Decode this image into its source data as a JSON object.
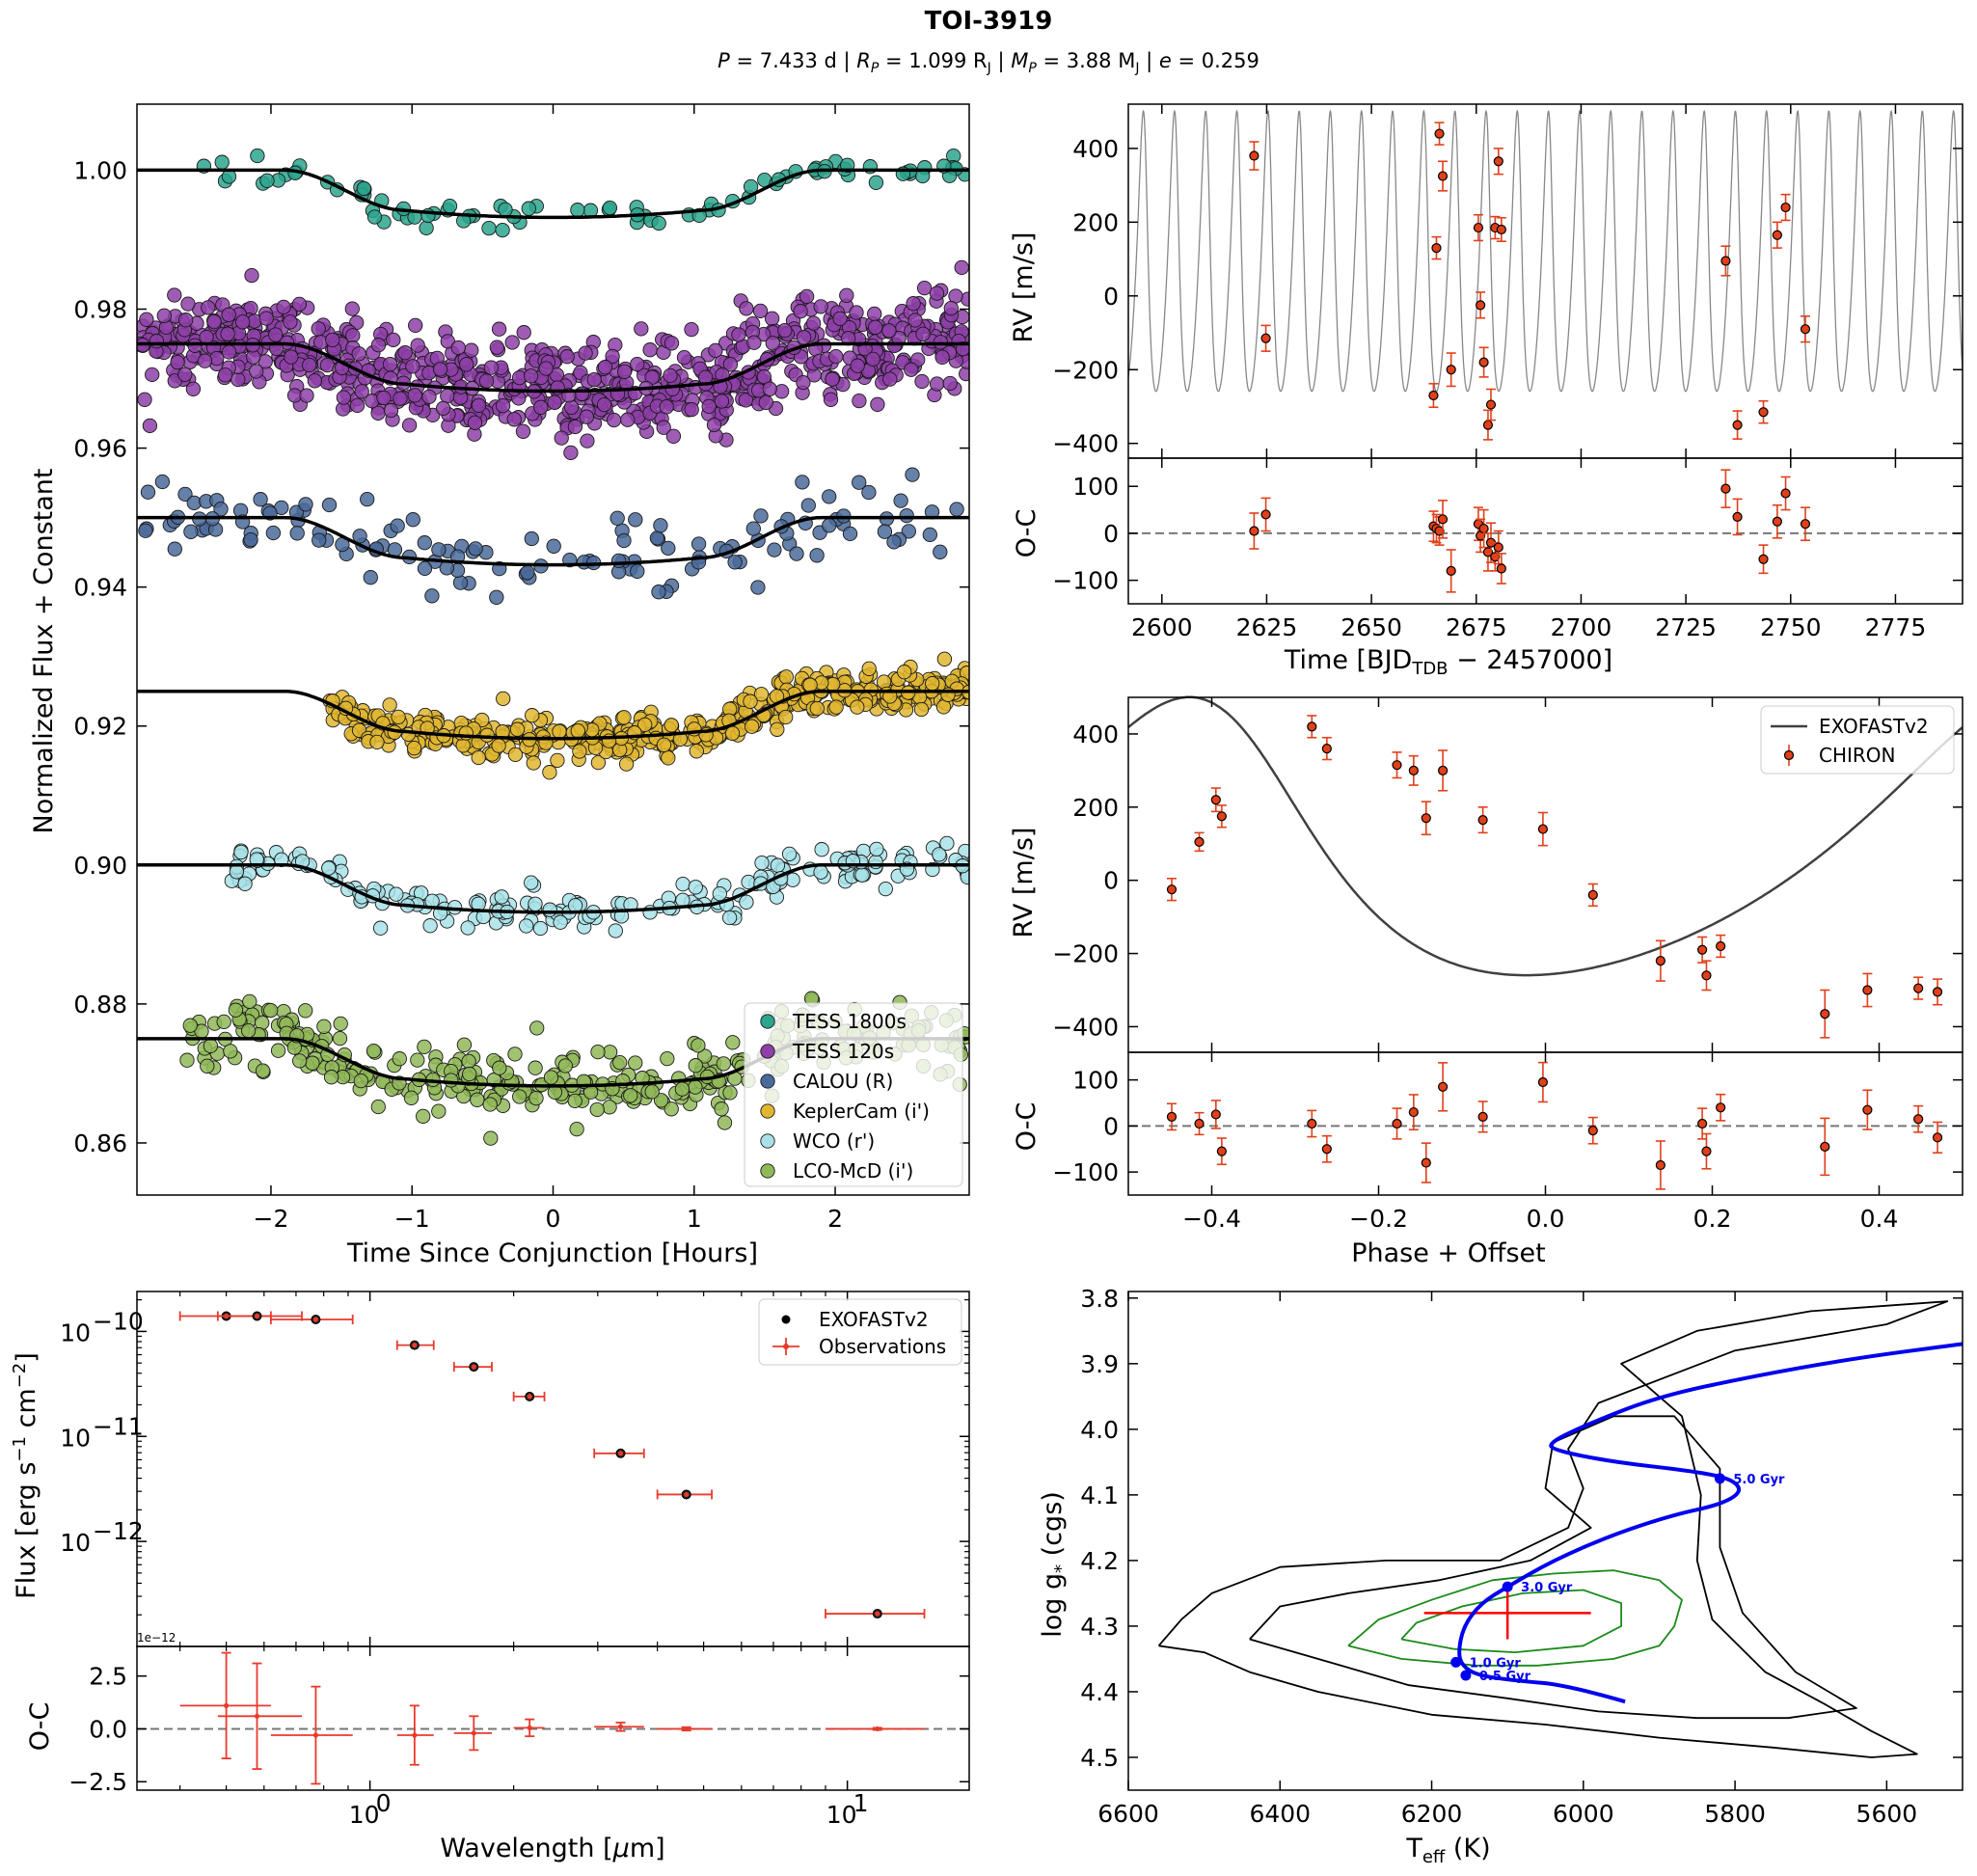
{
  "figure": {
    "title": "TOI-3919",
    "subtitle_parts": {
      "P_label": "P",
      "P_value": " = 7.433 d | ",
      "Rp_label": "R",
      "Rp_sub": "P",
      "Rp_value": " = 1.099 R",
      "Rp_unit_sub": "J",
      "Mp_label": "M",
      "Mp_sub": "P",
      "Mp_value": " = 3.88 M",
      "Mp_unit_sub": "J",
      "e_label": "e",
      "e_value": " = 0.259"
    }
  },
  "chart_data": [
    {
      "id": "transit",
      "type": "scatter",
      "xlabel": "Time Since Conjunction [Hours]",
      "ylabel": "Normalized Flux + Constant",
      "xlim": [
        -2.95,
        2.95
      ],
      "ylim": [
        0.8525,
        1.0095
      ],
      "xticks": [
        -2,
        -1,
        0,
        1,
        2
      ],
      "xtick_labels": [
        "−2",
        "−1",
        "0",
        "1",
        "2"
      ],
      "yticks": [
        0.86,
        0.88,
        0.9,
        0.92,
        0.94,
        0.96,
        0.98,
        1.0
      ],
      "ytick_labels": [
        "0.86",
        "0.88",
        "0.90",
        "0.92",
        "0.94",
        "0.96",
        "0.98",
        "1.00"
      ],
      "transit_model": {
        "depth": 0.0068,
        "t1": 1.9,
        "t2": 1.05
      },
      "legend_placement": "lower-right",
      "series": [
        {
          "name": "TESS 1800s",
          "color": "#2ca58d",
          "baseline": 1.0,
          "scatter": 0.0011,
          "count": 90,
          "tmin": -2.6,
          "tmax": 2.95
        },
        {
          "name": "TESS 120s",
          "color": "#8e3fa8",
          "baseline": 0.975,
          "scatter": 0.0036,
          "count": 850,
          "tmin": -2.95,
          "tmax": 2.95
        },
        {
          "name": "CALOU (R)",
          "color": "#4a6a9a",
          "baseline": 0.95,
          "scatter": 0.0026,
          "count": 140,
          "tmin": -2.95,
          "tmax": 2.95
        },
        {
          "name": "KeplerCam (i')",
          "color": "#e0b630",
          "baseline": 0.925,
          "scatter": 0.0015,
          "count": 480,
          "tmin": -1.6,
          "tmax": 2.95
        },
        {
          "name": "WCO (r')",
          "color": "#a8e2e8",
          "baseline": 0.9,
          "scatter": 0.0016,
          "count": 200,
          "tmin": -2.3,
          "tmax": 2.95
        },
        {
          "name": "LCO-McD (i')",
          "color": "#90b858",
          "baseline": 0.875,
          "scatter": 0.0024,
          "count": 360,
          "tmin": -2.6,
          "tmax": 2.95
        }
      ]
    },
    {
      "id": "rv_time",
      "type": "scatter",
      "xlabel_main": "Time [BJD",
      "xlabel_sub": "TDB",
      "xlabel_tail": " − 2457000]",
      "ylabel": "RV [m/s]",
      "resid_ylabel": "O-C",
      "xlim": [
        2592,
        2791
      ],
      "ylim": [
        -440,
        520
      ],
      "resid_ylim": [
        -150,
        160
      ],
      "xticks": [
        2600,
        2625,
        2650,
        2675,
        2700,
        2725,
        2750,
        2775
      ],
      "xtick_labels": [
        "2600",
        "2625",
        "2650",
        "2675",
        "2700",
        "2725",
        "2750",
        "2775"
      ],
      "yticks": [
        -400,
        -200,
        0,
        200,
        400
      ],
      "ytick_labels": [
        "−400",
        "−200",
        "0",
        "200",
        "400"
      ],
      "resid_yticks": [
        -100,
        0,
        100
      ],
      "resid_ytick_labels": [
        "−100",
        "0",
        "100"
      ],
      "model": {
        "period": 7.433,
        "phase_zero_time": 2596.0,
        "K": 380,
        "offset": 40,
        "e": 0.259
      },
      "points": [
        {
          "t": 2622.0,
          "rv": 380,
          "err": 38,
          "oc": 5
        },
        {
          "t": 2624.8,
          "rv": -115,
          "err": 35,
          "oc": 40
        },
        {
          "t": 2664.8,
          "rv": -270,
          "err": 32,
          "oc": 15
        },
        {
          "t": 2665.5,
          "rv": 130,
          "err": 30,
          "oc": 10
        },
        {
          "t": 2666.2,
          "rv": 440,
          "err": 30,
          "oc": 5
        },
        {
          "t": 2667.0,
          "rv": 325,
          "err": 40,
          "oc": 30
        },
        {
          "t": 2669.0,
          "rv": -200,
          "err": 45,
          "oc": -80
        },
        {
          "t": 2675.5,
          "rv": 185,
          "err": 35,
          "oc": 20
        },
        {
          "t": 2676.0,
          "rv": -25,
          "err": 35,
          "oc": -5
        },
        {
          "t": 2676.8,
          "rv": -180,
          "err": 40,
          "oc": 10
        },
        {
          "t": 2677.8,
          "rv": -350,
          "err": 40,
          "oc": -40
        },
        {
          "t": 2678.5,
          "rv": -295,
          "err": 42,
          "oc": -20
        },
        {
          "t": 2679.5,
          "rv": 185,
          "err": 30,
          "oc": -50
        },
        {
          "t": 2680.3,
          "rv": 365,
          "err": 35,
          "oc": -30
        },
        {
          "t": 2681.0,
          "rv": 180,
          "err": 32,
          "oc": -75
        },
        {
          "t": 2734.5,
          "rv": 95,
          "err": 40,
          "oc": 95
        },
        {
          "t": 2737.3,
          "rv": -350,
          "err": 38,
          "oc": 35
        },
        {
          "t": 2743.5,
          "rv": -315,
          "err": 30,
          "oc": -55
        },
        {
          "t": 2746.8,
          "rv": 165,
          "err": 35,
          "oc": 25
        },
        {
          "t": 2748.8,
          "rv": 240,
          "err": 35,
          "oc": 85
        },
        {
          "t": 2753.5,
          "rv": -90,
          "err": 35,
          "oc": 20
        }
      ]
    },
    {
      "id": "rv_phase",
      "type": "scatter",
      "xlabel": "Phase + Offset",
      "ylabel": "RV [m/s]",
      "resid_ylabel": "O-C",
      "xlim": [
        -0.5,
        0.5
      ],
      "ylim": [
        -470,
        500
      ],
      "resid_ylim": [
        -150,
        160
      ],
      "xticks": [
        -0.4,
        -0.2,
        0.0,
        0.2,
        0.4
      ],
      "xtick_labels": [
        "−0.4",
        "−0.2",
        "0.0",
        "0.2",
        "0.4"
      ],
      "yticks": [
        -400,
        -200,
        0,
        200,
        400
      ],
      "ytick_labels": [
        "−400",
        "−200",
        "0",
        "200",
        "400"
      ],
      "resid_yticks": [
        -100,
        0,
        100
      ],
      "resid_ytick_labels": [
        "−100",
        "0",
        "100"
      ],
      "model": {
        "K": 380,
        "offset": 40,
        "e": 0.259,
        "omega_deg": 35,
        "phase_peri": -0.37
      },
      "legend_placement": "upper-right",
      "legend": {
        "model": "EXOFASTv2",
        "data": "CHIRON"
      },
      "points": [
        {
          "ph": -0.448,
          "rv": -25,
          "err": 30,
          "oc": 20
        },
        {
          "ph": -0.415,
          "rv": 105,
          "err": 25,
          "oc": 5
        },
        {
          "ph": -0.395,
          "rv": 220,
          "err": 32,
          "oc": 25
        },
        {
          "ph": -0.388,
          "rv": 175,
          "err": 30,
          "oc": -55
        },
        {
          "ph": -0.28,
          "rv": 420,
          "err": 30,
          "oc": 5
        },
        {
          "ph": -0.262,
          "rv": 360,
          "err": 30,
          "oc": -50
        },
        {
          "ph": -0.178,
          "rv": 315,
          "err": 35,
          "oc": 5
        },
        {
          "ph": -0.158,
          "rv": 300,
          "err": 40,
          "oc": 30
        },
        {
          "ph": -0.143,
          "rv": 170,
          "err": 45,
          "oc": -80
        },
        {
          "ph": -0.123,
          "rv": 300,
          "err": 55,
          "oc": 85
        },
        {
          "ph": -0.075,
          "rv": 165,
          "err": 35,
          "oc": 20
        },
        {
          "ph": -0.003,
          "rv": 140,
          "err": 45,
          "oc": 95
        },
        {
          "ph": 0.057,
          "rv": -40,
          "err": 30,
          "oc": -10
        },
        {
          "ph": 0.138,
          "rv": -220,
          "err": 55,
          "oc": -85
        },
        {
          "ph": 0.188,
          "rv": -190,
          "err": 35,
          "oc": 5
        },
        {
          "ph": 0.193,
          "rv": -260,
          "err": 40,
          "oc": -55
        },
        {
          "ph": 0.21,
          "rv": -180,
          "err": 30,
          "oc": 40
        },
        {
          "ph": 0.335,
          "rv": -365,
          "err": 65,
          "oc": -45
        },
        {
          "ph": 0.386,
          "rv": -300,
          "err": 45,
          "oc": 35
        },
        {
          "ph": 0.447,
          "rv": -295,
          "err": 30,
          "oc": 15
        },
        {
          "ph": 0.47,
          "rv": -305,
          "err": 35,
          "oc": -25
        }
      ]
    },
    {
      "id": "sed",
      "type": "scatter",
      "xscale": "log",
      "yscale": "log",
      "xlabel_main": "Wavelength [",
      "xlabel_mu": "μ",
      "xlabel_tail": "m]",
      "ylabel_main": "Flux [erg s",
      "ylabel_sup1": "−1",
      "ylabel_mid": " cm",
      "ylabel_sup2": "−2",
      "ylabel_tail": "]",
      "resid_ylabel": "O-C",
      "offset_text": "1e−12",
      "xlim": [
        0.325,
        18.0
      ],
      "ylim": [
        1e-13,
        2.4e-10
      ],
      "resid_ylim": [
        -2.9,
        3.9
      ],
      "xtick_labels": [
        "10",
        "0",
        "10",
        "1"
      ],
      "yticks": [
        1e-12,
        1e-11,
        1e-10
      ],
      "ytick_labels": [
        "10",
        "−12",
        "10",
        "−11",
        "10",
        "−10"
      ],
      "resid_yticks": [
        -2.5,
        0.0,
        2.5
      ],
      "resid_ytick_labels": [
        "−2.5",
        "0.0",
        "2.5"
      ],
      "legend_placement": "upper-right",
      "legend": {
        "model": "EXOFASTv2",
        "data": "Observations"
      },
      "points": [
        {
          "wl": 0.5,
          "wlo": 0.4,
          "whi": 0.62,
          "flux": 1.4e-10,
          "oc": 1.1,
          "oce": 2.5
        },
        {
          "wl": 0.58,
          "wlo": 0.48,
          "whi": 0.72,
          "flux": 1.4e-10,
          "oc": 0.6,
          "oce": 2.5
        },
        {
          "wl": 0.77,
          "wlo": 0.62,
          "whi": 0.92,
          "flux": 1.3e-10,
          "oc": -0.3,
          "oce": 2.3
        },
        {
          "wl": 1.24,
          "wlo": 1.14,
          "whi": 1.36,
          "flux": 7.4e-11,
          "oc": -0.3,
          "oce": 1.4
        },
        {
          "wl": 1.65,
          "wlo": 1.5,
          "whi": 1.8,
          "flux": 4.6e-11,
          "oc": -0.2,
          "oce": 0.8
        },
        {
          "wl": 2.16,
          "wlo": 2.0,
          "whi": 2.32,
          "flux": 2.4e-11,
          "oc": 0.05,
          "oce": 0.4
        },
        {
          "wl": 3.35,
          "wlo": 2.95,
          "whi": 3.75,
          "flux": 6.9e-12,
          "oc": 0.1,
          "oce": 0.2
        },
        {
          "wl": 4.6,
          "wlo": 4.0,
          "whi": 5.2,
          "flux": 2.8e-12,
          "oc": 0.0,
          "oce": 0.08
        },
        {
          "wl": 11.56,
          "wlo": 9.0,
          "whi": 14.5,
          "flux": 2.05e-13,
          "oc": 0.0,
          "oce": 0.05
        }
      ]
    },
    {
      "id": "hrd",
      "type": "line",
      "xlabel_main": "T",
      "xlabel_sub": "eff",
      "xlabel_tail": " (K)",
      "ylabel_main": "log g",
      "ylabel_sub": "*",
      "ylabel_tail": " (cgs)",
      "xlim": [
        6600,
        5500
      ],
      "ylim": [
        4.55,
        3.79
      ],
      "xticks": [
        6600,
        6400,
        6200,
        6000,
        5800,
        5600
      ],
      "xtick_labels": [
        "6600",
        "6400",
        "6200",
        "6000",
        "5800",
        "5600"
      ],
      "yticks": [
        3.8,
        3.9,
        4.0,
        4.1,
        4.2,
        4.3,
        4.4,
        4.5
      ],
      "ytick_labels": [
        "3.8",
        "3.9",
        "4.0",
        "4.1",
        "4.2",
        "4.3",
        "4.4",
        "4.5"
      ],
      "track": [
        [
          5945,
          4.415
        ],
        [
          6020,
          4.39
        ],
        [
          6090,
          4.383
        ],
        [
          6140,
          4.375
        ],
        [
          6160,
          4.36
        ],
        [
          6165,
          4.34
        ],
        [
          6158,
          4.3
        ],
        [
          6135,
          4.265
        ],
        [
          6100,
          4.24
        ],
        [
          6040,
          4.2
        ],
        [
          5960,
          4.16
        ],
        [
          5880,
          4.13
        ],
        [
          5820,
          4.115
        ],
        [
          5790,
          4.095
        ],
        [
          5805,
          4.075
        ],
        [
          5860,
          4.063
        ],
        [
          5960,
          4.05
        ],
        [
          6040,
          4.032
        ],
        [
          6045,
          4.02
        ],
        [
          5990,
          3.99
        ],
        [
          5900,
          3.95
        ],
        [
          5780,
          3.92
        ],
        [
          5650,
          3.893
        ],
        [
          5500,
          3.87
        ]
      ],
      "age_points": [
        {
          "label": "0.5 Gyr",
          "teff": 6155,
          "logg": 4.375
        },
        {
          "label": "1.0 Gyr",
          "teff": 6168,
          "logg": 4.355
        },
        {
          "label": "3.0 Gyr",
          "teff": 6100,
          "logg": 4.24
        },
        {
          "label": "5.0 Gyr",
          "teff": 5820,
          "logg": 4.075
        }
      ],
      "star": {
        "teff": 6100,
        "teff_err": 110,
        "logg": 4.28,
        "logg_err": 0.04
      },
      "contour_outer": [
        [
          6560,
          4.33
        ],
        [
          6500,
          4.34
        ],
        [
          6440,
          4.37
        ],
        [
          6350,
          4.4
        ],
        [
          6200,
          4.435
        ],
        [
          6050,
          4.45
        ],
        [
          5900,
          4.47
        ],
        [
          5750,
          4.485
        ],
        [
          5620,
          4.5
        ],
        [
          5560,
          4.495
        ],
        [
          5620,
          4.46
        ],
        [
          5680,
          4.42
        ],
        [
          5760,
          4.37
        ],
        [
          5830,
          4.29
        ],
        [
          5850,
          4.2
        ],
        [
          5845,
          4.1
        ],
        [
          5870,
          3.98
        ],
        [
          5950,
          3.9
        ],
        [
          5850,
          3.85
        ],
        [
          5700,
          3.82
        ],
        [
          5520,
          3.805
        ],
        [
          5600,
          3.84
        ],
        [
          5800,
          3.88
        ],
        [
          5980,
          3.96
        ],
        [
          6020,
          4.03
        ],
        [
          6000,
          4.09
        ],
        [
          6020,
          4.15
        ],
        [
          6110,
          4.2
        ],
        [
          6260,
          4.2
        ],
        [
          6400,
          4.21
        ],
        [
          6490,
          4.25
        ],
        [
          6530,
          4.29
        ],
        [
          6560,
          4.33
        ]
      ],
      "contour_inner": [
        [
          6440,
          4.32
        ],
        [
          6350,
          4.35
        ],
        [
          6230,
          4.39
        ],
        [
          6100,
          4.41
        ],
        [
          5980,
          4.43
        ],
        [
          5850,
          4.44
        ],
        [
          5730,
          4.44
        ],
        [
          5640,
          4.425
        ],
        [
          5720,
          4.37
        ],
        [
          5790,
          4.28
        ],
        [
          5820,
          4.18
        ],
        [
          5820,
          4.06
        ],
        [
          5880,
          3.98
        ],
        [
          5960,
          3.98
        ],
        [
          6040,
          4.02
        ],
        [
          6050,
          4.09
        ],
        [
          5990,
          4.15
        ],
        [
          6070,
          4.2
        ],
        [
          6190,
          4.23
        ],
        [
          6310,
          4.25
        ],
        [
          6400,
          4.27
        ],
        [
          6440,
          4.32
        ]
      ],
      "contour_green": [
        [
          6310,
          4.33
        ],
        [
          6240,
          4.35
        ],
        [
          6140,
          4.36
        ],
        [
          6060,
          4.36
        ],
        [
          5960,
          4.35
        ],
        [
          5900,
          4.33
        ],
        [
          5880,
          4.3
        ],
        [
          5870,
          4.26
        ],
        [
          5900,
          4.23
        ],
        [
          5960,
          4.215
        ],
        [
          6040,
          4.22
        ],
        [
          6120,
          4.23
        ],
        [
          6200,
          4.26
        ],
        [
          6270,
          4.29
        ],
        [
          6310,
          4.33
        ]
      ],
      "contour_green_inner": [
        [
          6240,
          4.32
        ],
        [
          6170,
          4.335
        ],
        [
          6090,
          4.34
        ],
        [
          6000,
          4.33
        ],
        [
          5950,
          4.3
        ],
        [
          5950,
          4.265
        ],
        [
          6000,
          4.245
        ],
        [
          6080,
          4.25
        ],
        [
          6160,
          4.27
        ],
        [
          6220,
          4.295
        ],
        [
          6240,
          4.32
        ]
      ]
    }
  ]
}
